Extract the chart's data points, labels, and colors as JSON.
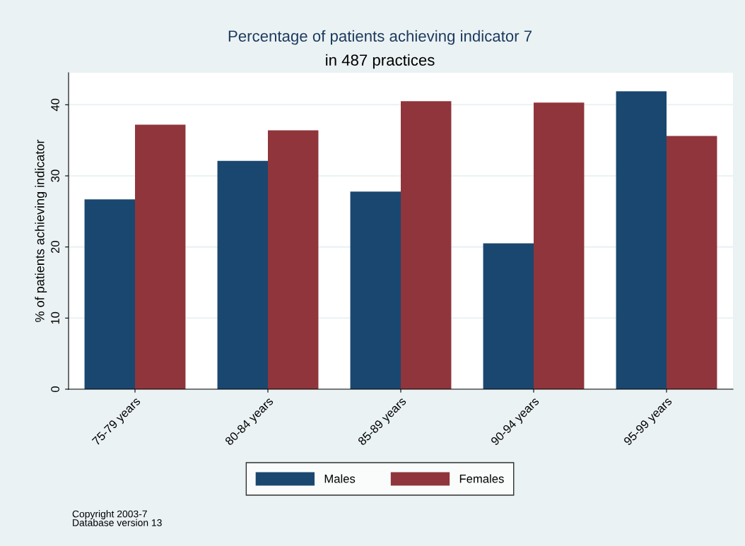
{
  "chart_data": {
    "type": "bar",
    "title": "Percentage of patients achieving indicator 7",
    "subtitle": "in 487 practices",
    "ylabel": "% of patients achieving indicator",
    "categories": [
      "75-79 years",
      "80-84 years",
      "85-89 years",
      "90-94 years",
      "95-99 years"
    ],
    "series": [
      {
        "name": "Males",
        "color": "#1a476f",
        "values": [
          26.7,
          32.1,
          27.8,
          20.5,
          41.9
        ]
      },
      {
        "name": "Females",
        "color": "#90353b",
        "values": [
          37.2,
          36.4,
          40.5,
          40.3,
          35.6
        ]
      }
    ],
    "ylim": [
      0,
      44.5
    ],
    "yticks": [
      0,
      10,
      20,
      30,
      40
    ],
    "grid": "y",
    "legend": "bottom",
    "annotations": [
      "Copyright 2003-7\nDatabase version 13"
    ]
  }
}
